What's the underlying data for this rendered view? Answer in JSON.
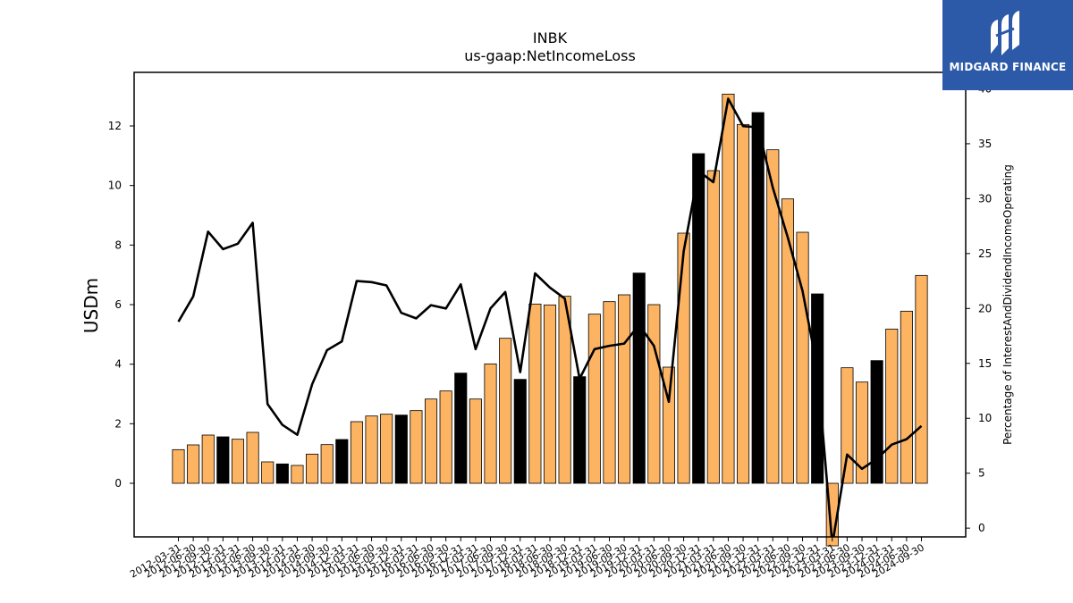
{
  "logo": {
    "text": "MIDGARD FINANCE",
    "icon": "midgard-logo-icon",
    "color": "#2c5aa8"
  },
  "chart_data": {
    "type": "bar",
    "title": "INBK",
    "subtitle": "us-gaap:NetIncomeLoss",
    "ylabel": "USDm",
    "y2label": "Percentage of InterestAndDividendIncomeOperating",
    "ylim": [
      -1.8,
      13.8
    ],
    "y2lim": [
      -0.8,
      41.5
    ],
    "yticks": [
      0,
      2,
      4,
      6,
      8,
      10,
      12
    ],
    "y2ticks": [
      0,
      5,
      10,
      15,
      20,
      25,
      30,
      35,
      40
    ],
    "grid": false,
    "categories": [
      "2012-03-31",
      "2012-06-30",
      "2012-09-30",
      "2012-12-31",
      "2013-03-31",
      "2013-06-30",
      "2013-09-30",
      "2013-12-31",
      "2014-03-31",
      "2014-06-30",
      "2014-09-30",
      "2014-12-31",
      "2015-03-31",
      "2015-06-30",
      "2015-09-30",
      "2015-12-31",
      "2016-03-31",
      "2016-06-30",
      "2016-09-30",
      "2016-12-31",
      "2017-03-31",
      "2017-06-30",
      "2017-09-30",
      "2017-12-31",
      "2018-03-31",
      "2018-06-30",
      "2018-09-30",
      "2018-12-31",
      "2019-03-31",
      "2019-06-30",
      "2019-09-30",
      "2019-12-31",
      "2020-03-31",
      "2020-06-30",
      "2020-09-30",
      "2020-12-31",
      "2021-03-31",
      "2021-06-30",
      "2021-09-30",
      "2021-12-31",
      "2022-03-31",
      "2022-06-30",
      "2022-09-30",
      "2022-12-31",
      "2023-03-31",
      "2023-06-30",
      "2023-09-30",
      "2023-12-31",
      "2024-03-31",
      "2024-06-30",
      "2024-09-30"
    ],
    "series": [
      {
        "kind": "bar",
        "values": [
          1.13,
          1.29,
          1.62,
          1.56,
          1.48,
          1.71,
          0.72,
          0.65,
          0.6,
          0.98,
          1.3,
          1.47,
          2.07,
          2.26,
          2.32,
          2.29,
          2.44,
          2.83,
          3.1,
          3.7,
          2.83,
          4.01,
          4.87,
          3.49,
          6.02,
          5.99,
          6.28,
          3.58,
          5.68,
          6.1,
          6.33,
          7.06,
          6.0,
          3.9,
          8.4,
          11.07,
          10.5,
          13.07,
          12.05,
          12.45,
          11.2,
          9.55,
          8.43,
          6.36,
          -2.1,
          3.88,
          3.4,
          4.12,
          5.18,
          5.78,
          6.98
        ],
        "highlight": [
          false,
          false,
          false,
          true,
          false,
          false,
          false,
          true,
          false,
          false,
          false,
          true,
          false,
          false,
          false,
          true,
          false,
          false,
          false,
          true,
          false,
          false,
          false,
          true,
          false,
          false,
          false,
          true,
          false,
          false,
          false,
          true,
          false,
          false,
          false,
          true,
          false,
          false,
          false,
          true,
          false,
          false,
          false,
          true,
          false,
          false,
          false,
          true,
          false,
          false,
          false
        ],
        "color": "#fdb462",
        "highlight_color": "#000000"
      },
      {
        "kind": "line",
        "axis": "right",
        "values": [
          18.8,
          21.1,
          27.0,
          25.4,
          25.9,
          27.8,
          11.3,
          9.4,
          8.5,
          13.1,
          16.2,
          17.0,
          22.5,
          22.4,
          22.1,
          19.6,
          19.1,
          20.3,
          20.0,
          22.2,
          16.3,
          20.0,
          21.5,
          14.2,
          23.2,
          21.9,
          20.9,
          13.6,
          16.3,
          16.6,
          16.8,
          18.5,
          16.6,
          11.5,
          25.2,
          32.5,
          31.5,
          39.1,
          36.6,
          36.5,
          31.0,
          26.5,
          21.6,
          14.5,
          -1.5,
          6.7,
          5.4,
          6.3,
          7.6,
          8.1,
          9.3
        ],
        "color": "#000000"
      }
    ]
  }
}
